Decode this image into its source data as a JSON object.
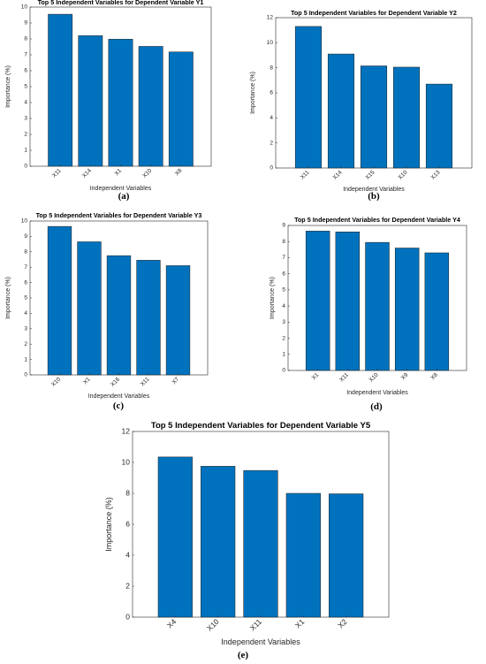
{
  "chart_data": [
    {
      "type": "bar",
      "panel_label": "(a)",
      "title": "Top 5 Independent Variables for Dependent Variable Y1",
      "xlabel": "Independent Variables",
      "ylabel": "Importance (%)",
      "categories": [
        "X11",
        "X14",
        "X1",
        "X10",
        "X8"
      ],
      "values": [
        9.55,
        8.2,
        7.98,
        7.53,
        7.18
      ],
      "ylim": [
        0,
        10
      ],
      "yticks": [
        "0",
        "1",
        "2",
        "3",
        "4",
        "5",
        "6",
        "7",
        "8",
        "9",
        "10"
      ],
      "bar_color": "#0072BD",
      "grid": false,
      "legend": "none"
    },
    {
      "type": "bar",
      "panel_label": "(b)",
      "title": "Top 5 Independent Variables for Dependent Variable Y2",
      "xlabel": "Independent Variables",
      "ylabel": "Importance (%)",
      "categories": [
        "X11",
        "X14",
        "X15",
        "X10",
        "X13"
      ],
      "values": [
        11.3,
        9.1,
        8.15,
        8.05,
        6.7
      ],
      "ylim": [
        0,
        12
      ],
      "yticks": [
        "0",
        "2",
        "4",
        "6",
        "8",
        "10",
        "12"
      ],
      "bar_color": "#0072BD",
      "grid": false,
      "legend": "none"
    },
    {
      "type": "bar",
      "panel_label": "(c)",
      "title": "Top 5 Independent Variables for Dependent Variable Y3",
      "xlabel": "Independent Variables",
      "ylabel": "Importance (%)",
      "categories": [
        "X10",
        "X1",
        "X16",
        "X11",
        "X7"
      ],
      "values": [
        9.65,
        8.65,
        7.75,
        7.45,
        7.1
      ],
      "ylim": [
        0,
        10
      ],
      "yticks": [
        "0",
        "1",
        "2",
        "3",
        "4",
        "5",
        "6",
        "7",
        "8",
        "9",
        "10"
      ],
      "bar_color": "#0072BD",
      "grid": false,
      "legend": "none"
    },
    {
      "type": "bar",
      "panel_label": "(d)",
      "title": "Top 5 Independent Variables for Dependent Variable Y4",
      "xlabel": "Independent Variables",
      "ylabel": "Importance (%)",
      "categories": [
        "X1",
        "X11",
        "X10",
        "X9",
        "X8"
      ],
      "values": [
        8.65,
        8.6,
        7.95,
        7.6,
        7.3
      ],
      "ylim": [
        0,
        9
      ],
      "yticks": [
        "0",
        "1",
        "2",
        "3",
        "4",
        "5",
        "6",
        "7",
        "8",
        "9"
      ],
      "bar_color": "#0072BD",
      "grid": false,
      "legend": "none"
    },
    {
      "type": "bar",
      "panel_label": "(e)",
      "title": "Top 5 Independent Variables for Dependent Variable Y5",
      "xlabel": "Independent Variables",
      "ylabel": "Importance (%)",
      "categories": [
        "X4",
        "X10",
        "X11",
        "X1",
        "X2"
      ],
      "values": [
        10.35,
        9.75,
        9.48,
        8.0,
        7.97
      ],
      "ylim": [
        0,
        12
      ],
      "yticks": [
        "0",
        "2",
        "4",
        "6",
        "8",
        "10",
        "12"
      ],
      "bar_color": "#0072BD",
      "grid": false,
      "legend": "none"
    }
  ]
}
